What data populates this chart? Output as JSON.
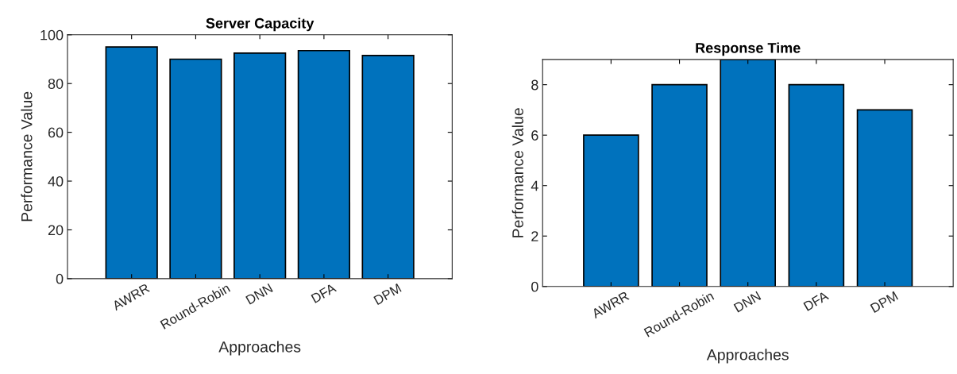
{
  "chart_data": [
    {
      "type": "bar",
      "title": "Server Capacity",
      "xlabel": "Approaches",
      "ylabel": "Performance Value",
      "categories": [
        "AWRR",
        "Round-Robin",
        "DNN",
        "DFA",
        "DPM"
      ],
      "values": [
        95,
        90,
        92.5,
        93.5,
        91.5
      ],
      "color": "#0072bd",
      "ylim": [
        0,
        100
      ],
      "yticks": [
        0,
        20,
        40,
        60,
        80,
        100
      ],
      "grid": false,
      "legend": false
    },
    {
      "type": "bar",
      "title": "Response Time",
      "xlabel": "Approaches",
      "ylabel": "Performance Value",
      "categories": [
        "AWRR",
        "Round-Robin",
        "DNN",
        "DFA",
        "DPM"
      ],
      "values": [
        6,
        8,
        9,
        8,
        7
      ],
      "color": "#0072bd",
      "ylim": [
        0,
        9
      ],
      "yticks": [
        0,
        2,
        4,
        6,
        8
      ],
      "grid": false,
      "legend": false
    }
  ]
}
